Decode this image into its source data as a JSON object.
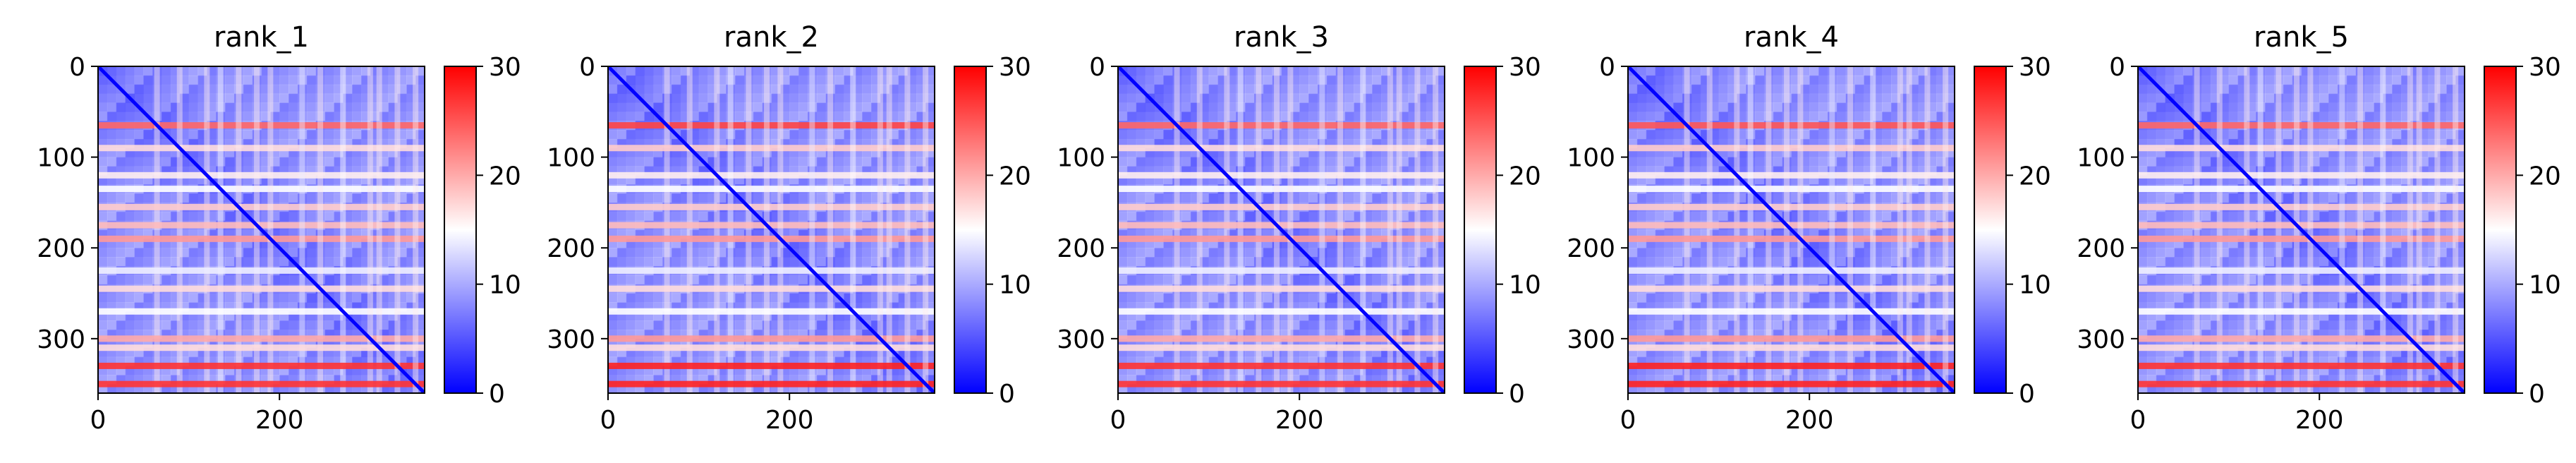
{
  "chart_data": [
    {
      "type": "heatmap",
      "title": "rank_1",
      "xlim": [
        0,
        360
      ],
      "ylim": [
        360,
        0
      ],
      "xticks": [
        0,
        200
      ],
      "yticks": [
        0,
        100,
        200,
        300
      ],
      "colorbar": {
        "min": 0,
        "max": 30,
        "ticks": [
          0,
          10,
          20,
          30
        ],
        "colormap": "bwr"
      },
      "bands": [
        {
          "pos": 65,
          "value": 24
        },
        {
          "pos": 90,
          "value": 17
        },
        {
          "pos": 120,
          "value": 16
        },
        {
          "pos": 135,
          "value": 15
        },
        {
          "pos": 155,
          "value": 18
        },
        {
          "pos": 175,
          "value": 19
        },
        {
          "pos": 190,
          "value": 21
        },
        {
          "pos": 225,
          "value": 14
        },
        {
          "pos": 245,
          "value": 17
        },
        {
          "pos": 270,
          "value": 15
        },
        {
          "pos": 300,
          "value": 20
        },
        {
          "pos": 310,
          "value": 17
        },
        {
          "pos": 330,
          "value": 27
        },
        {
          "pos": 350,
          "value": 27
        }
      ]
    },
    {
      "type": "heatmap",
      "title": "rank_2",
      "xlim": [
        0,
        360
      ],
      "ylim": [
        360,
        0
      ],
      "xticks": [
        0,
        200
      ],
      "yticks": [
        0,
        100,
        200,
        300
      ],
      "colorbar": {
        "min": 0,
        "max": 30,
        "ticks": [
          0,
          10,
          20,
          30
        ],
        "colormap": "bwr"
      },
      "bands": [
        {
          "pos": 65,
          "value": 26
        },
        {
          "pos": 90,
          "value": 18
        },
        {
          "pos": 120,
          "value": 16
        },
        {
          "pos": 135,
          "value": 15
        },
        {
          "pos": 155,
          "value": 18
        },
        {
          "pos": 175,
          "value": 19
        },
        {
          "pos": 190,
          "value": 21
        },
        {
          "pos": 225,
          "value": 14
        },
        {
          "pos": 245,
          "value": 17
        },
        {
          "pos": 270,
          "value": 15
        },
        {
          "pos": 300,
          "value": 21
        },
        {
          "pos": 310,
          "value": 17
        },
        {
          "pos": 330,
          "value": 28
        },
        {
          "pos": 350,
          "value": 28
        }
      ]
    },
    {
      "type": "heatmap",
      "title": "rank_3",
      "xlim": [
        0,
        360
      ],
      "ylim": [
        360,
        0
      ],
      "xticks": [
        0,
        200
      ],
      "yticks": [
        0,
        100,
        200,
        300
      ],
      "colorbar": {
        "min": 0,
        "max": 30,
        "ticks": [
          0,
          10,
          20,
          30
        ],
        "colormap": "bwr"
      },
      "bands": [
        {
          "pos": 65,
          "value": 24
        },
        {
          "pos": 90,
          "value": 17
        },
        {
          "pos": 120,
          "value": 16
        },
        {
          "pos": 135,
          "value": 15
        },
        {
          "pos": 155,
          "value": 18
        },
        {
          "pos": 175,
          "value": 19
        },
        {
          "pos": 190,
          "value": 21
        },
        {
          "pos": 225,
          "value": 14
        },
        {
          "pos": 245,
          "value": 17
        },
        {
          "pos": 270,
          "value": 15
        },
        {
          "pos": 300,
          "value": 20
        },
        {
          "pos": 310,
          "value": 17
        },
        {
          "pos": 330,
          "value": 27
        },
        {
          "pos": 350,
          "value": 27
        }
      ]
    },
    {
      "type": "heatmap",
      "title": "rank_4",
      "xlim": [
        0,
        360
      ],
      "ylim": [
        360,
        0
      ],
      "xticks": [
        0,
        200
      ],
      "yticks": [
        0,
        100,
        200,
        300
      ],
      "colorbar": {
        "min": 0,
        "max": 30,
        "ticks": [
          0,
          10,
          20,
          30
        ],
        "colormap": "bwr"
      },
      "bands": [
        {
          "pos": 65,
          "value": 25
        },
        {
          "pos": 90,
          "value": 18
        },
        {
          "pos": 120,
          "value": 16
        },
        {
          "pos": 135,
          "value": 15
        },
        {
          "pos": 155,
          "value": 18
        },
        {
          "pos": 175,
          "value": 19
        },
        {
          "pos": 190,
          "value": 21
        },
        {
          "pos": 225,
          "value": 14
        },
        {
          "pos": 245,
          "value": 17
        },
        {
          "pos": 270,
          "value": 15
        },
        {
          "pos": 300,
          "value": 21
        },
        {
          "pos": 310,
          "value": 17
        },
        {
          "pos": 330,
          "value": 28
        },
        {
          "pos": 350,
          "value": 28
        }
      ]
    },
    {
      "type": "heatmap",
      "title": "rank_5",
      "xlim": [
        0,
        360
      ],
      "ylim": [
        360,
        0
      ],
      "xticks": [
        0,
        200
      ],
      "yticks": [
        0,
        100,
        200,
        300
      ],
      "colorbar": {
        "min": 0,
        "max": 30,
        "ticks": [
          0,
          10,
          20,
          30
        ],
        "colormap": "bwr"
      },
      "bands": [
        {
          "pos": 65,
          "value": 24
        },
        {
          "pos": 90,
          "value": 17
        },
        {
          "pos": 120,
          "value": 16
        },
        {
          "pos": 135,
          "value": 15
        },
        {
          "pos": 155,
          "value": 18
        },
        {
          "pos": 175,
          "value": 19
        },
        {
          "pos": 190,
          "value": 21
        },
        {
          "pos": 225,
          "value": 14
        },
        {
          "pos": 245,
          "value": 17
        },
        {
          "pos": 270,
          "value": 15
        },
        {
          "pos": 300,
          "value": 20
        },
        {
          "pos": 310,
          "value": 17
        },
        {
          "pos": 330,
          "value": 27
        },
        {
          "pos": 350,
          "value": 27
        }
      ]
    }
  ]
}
